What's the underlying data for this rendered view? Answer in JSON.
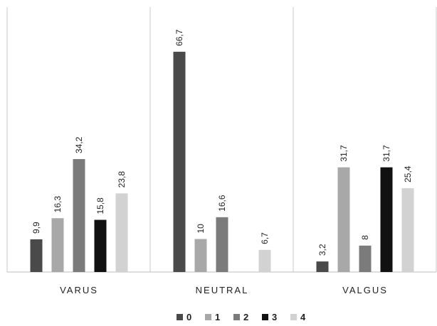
{
  "chart_data": {
    "type": "bar",
    "title": "",
    "xlabel": "",
    "ylabel": "",
    "ylim": [
      0,
      70
    ],
    "grid": false,
    "legend_position": "bottom",
    "categories": [
      "VARUS",
      "NEUTRAL",
      "VALGUS"
    ],
    "series": [
      {
        "name": "0",
        "color": "#4a4a4a",
        "values": [
          9.9,
          66.7,
          3.2
        ],
        "labels": [
          "9,9",
          "66,7",
          "3,2"
        ]
      },
      {
        "name": "1",
        "color": "#a8a8a8",
        "values": [
          16.3,
          10,
          31.7
        ],
        "labels": [
          "16,3",
          "10",
          "31,7"
        ]
      },
      {
        "name": "2",
        "color": "#7b7b7b",
        "values": [
          34.2,
          16.6,
          8
        ],
        "labels": [
          "34,2",
          "16,6",
          "8"
        ]
      },
      {
        "name": "3",
        "color": "#111111",
        "values": [
          15.8,
          null,
          31.7
        ],
        "labels": [
          "15,8",
          "",
          "31,7"
        ]
      },
      {
        "name": "4",
        "color": "#d2d2d2",
        "values": [
          23.8,
          6.7,
          25.4
        ],
        "labels": [
          "23,8",
          "6,7",
          "25,4"
        ]
      }
    ]
  }
}
